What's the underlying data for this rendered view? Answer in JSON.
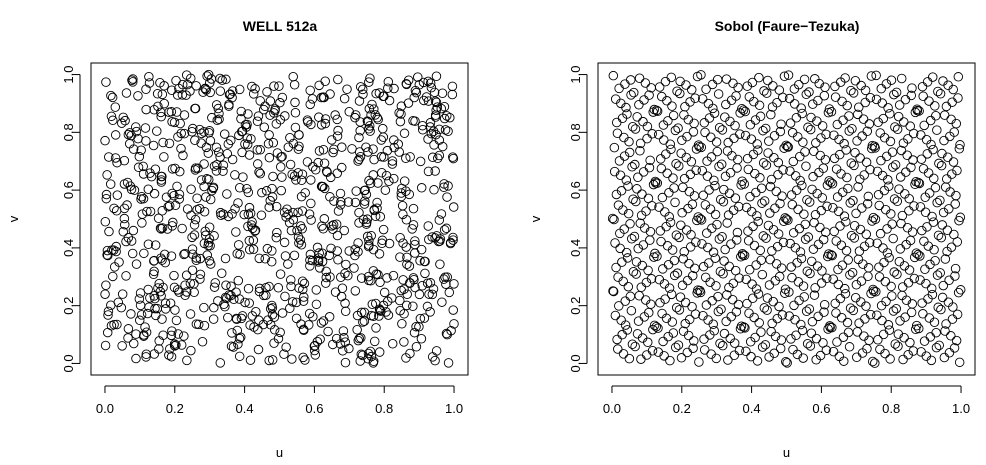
{
  "chart_data": [
    {
      "type": "scatter",
      "title": "WELL 512a",
      "xlabel": "u",
      "ylabel": "v",
      "xlim": [
        0,
        1
      ],
      "ylim": [
        0,
        1
      ],
      "xticks": [
        "0.0",
        "0.2",
        "0.4",
        "0.6",
        "0.8",
        "1.0"
      ],
      "yticks": [
        "0.0",
        "0.2",
        "0.4",
        "0.6",
        "0.8",
        "1.0"
      ],
      "grid": false,
      "legend": "none",
      "marker": "open-circle",
      "n_points": 1000,
      "generator": "pseudo-random uniform"
    },
    {
      "type": "scatter",
      "title": "Sobol (Faure−Tezuka)",
      "xlabel": "u",
      "ylabel": "v",
      "xlim": [
        0,
        1
      ],
      "ylim": [
        0,
        1
      ],
      "xticks": [
        "0.0",
        "0.2",
        "0.4",
        "0.6",
        "0.8",
        "1.0"
      ],
      "yticks": [
        "0.0",
        "0.2",
        "0.4",
        "0.6",
        "0.8",
        "1.0"
      ],
      "grid": false,
      "legend": "none",
      "marker": "open-circle",
      "n_points": 1000,
      "generator": "low-discrepancy sequence"
    }
  ]
}
